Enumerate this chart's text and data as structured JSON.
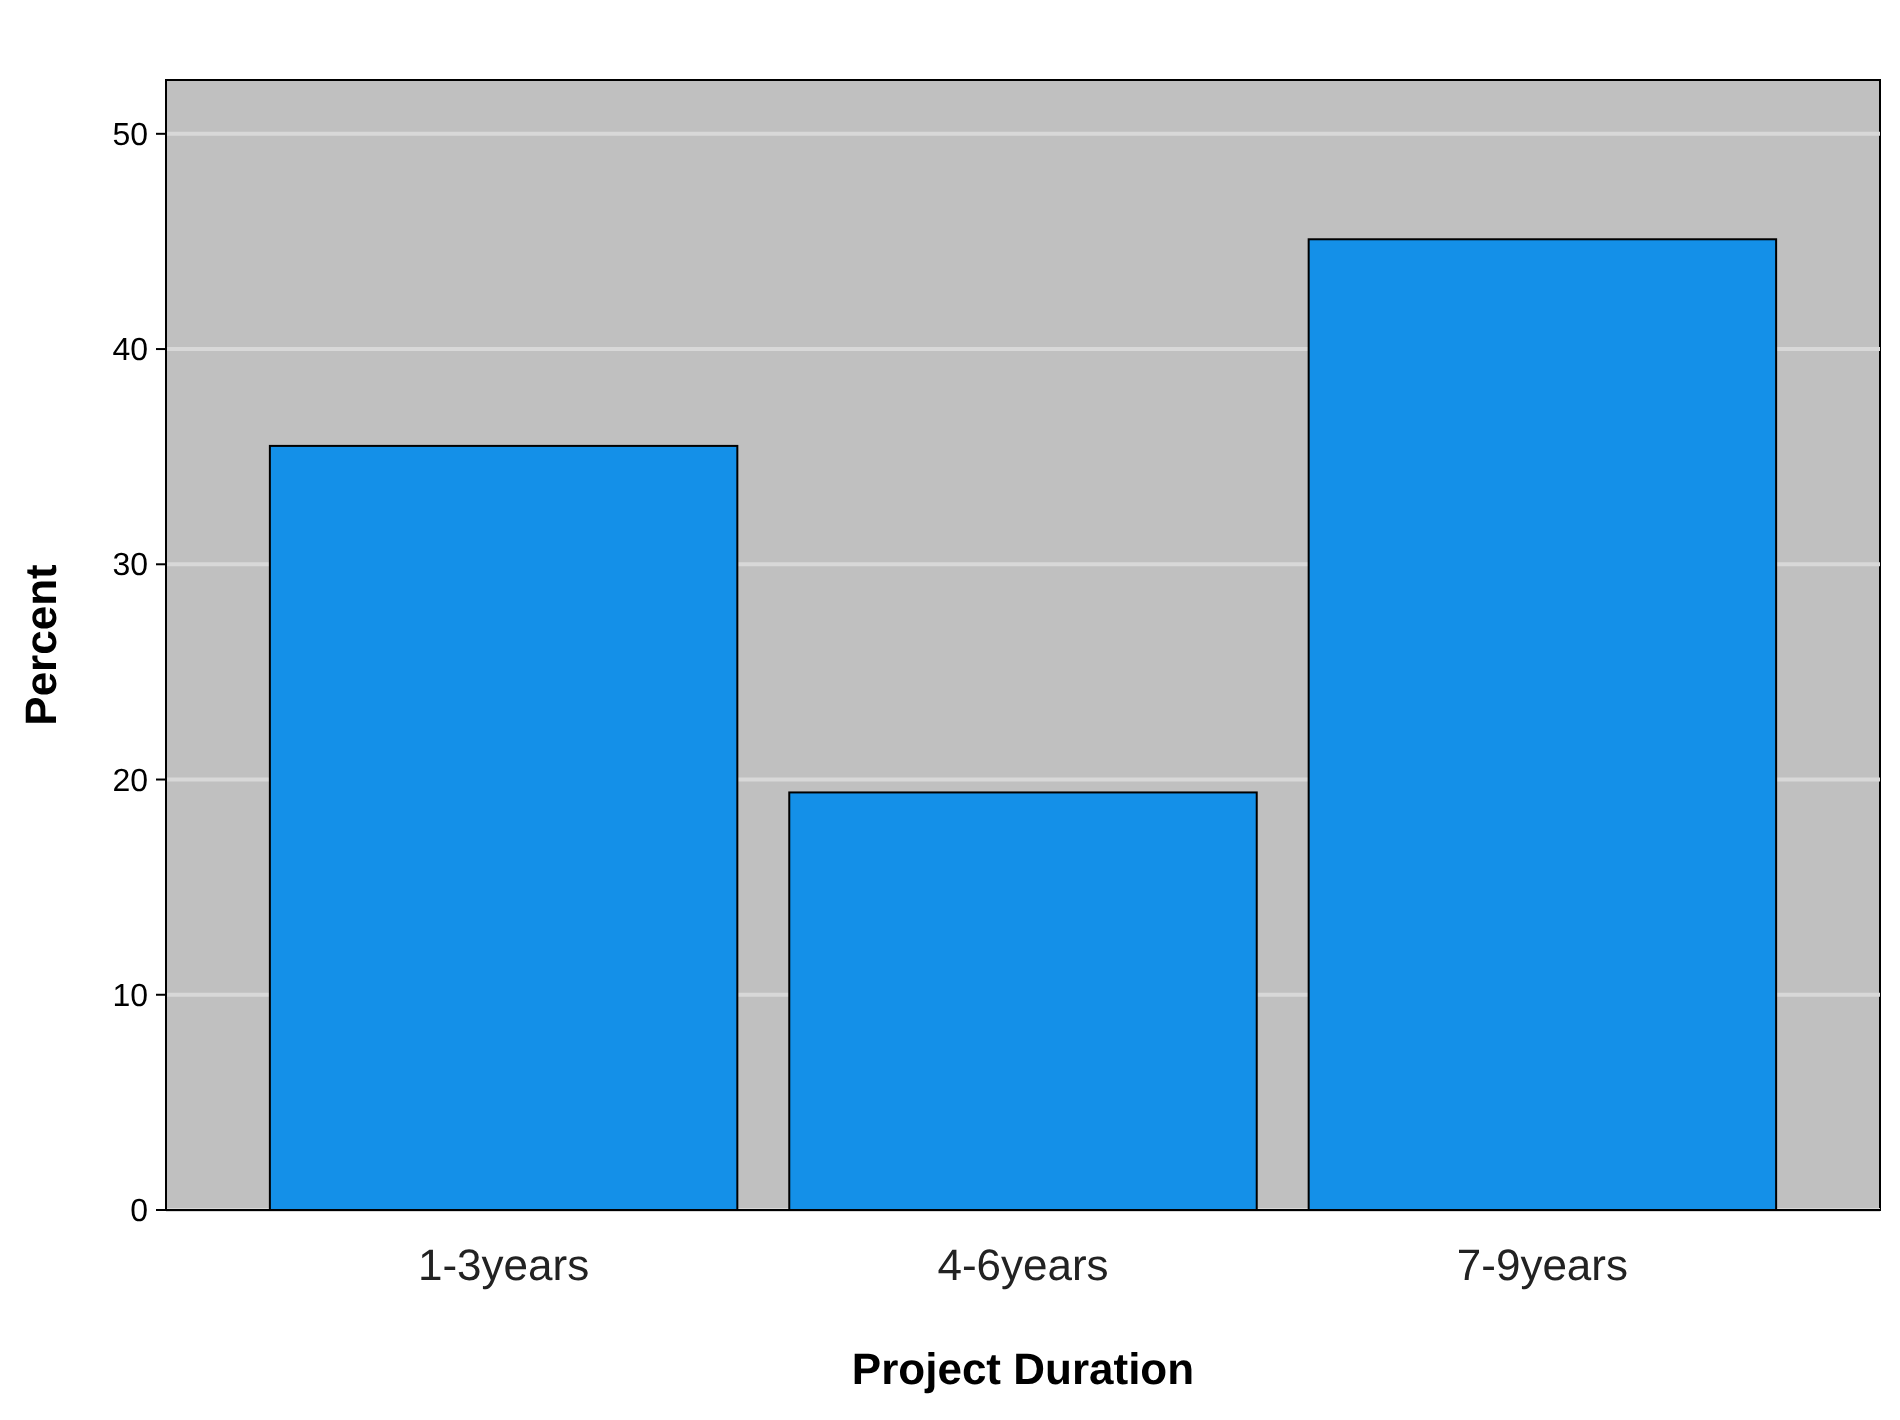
{
  "chart_data": {
    "type": "bar",
    "xlabel": "Project Duration",
    "ylabel": "Percent",
    "categories": [
      "1-3years",
      "4-6years",
      "7-9years"
    ],
    "values": [
      35.5,
      19.4,
      45.1
    ],
    "color": "#1490e8",
    "ylim": [
      0,
      52.5
    ],
    "yticks": [
      0,
      10,
      20,
      30,
      40,
      50
    ],
    "grid": "y"
  }
}
